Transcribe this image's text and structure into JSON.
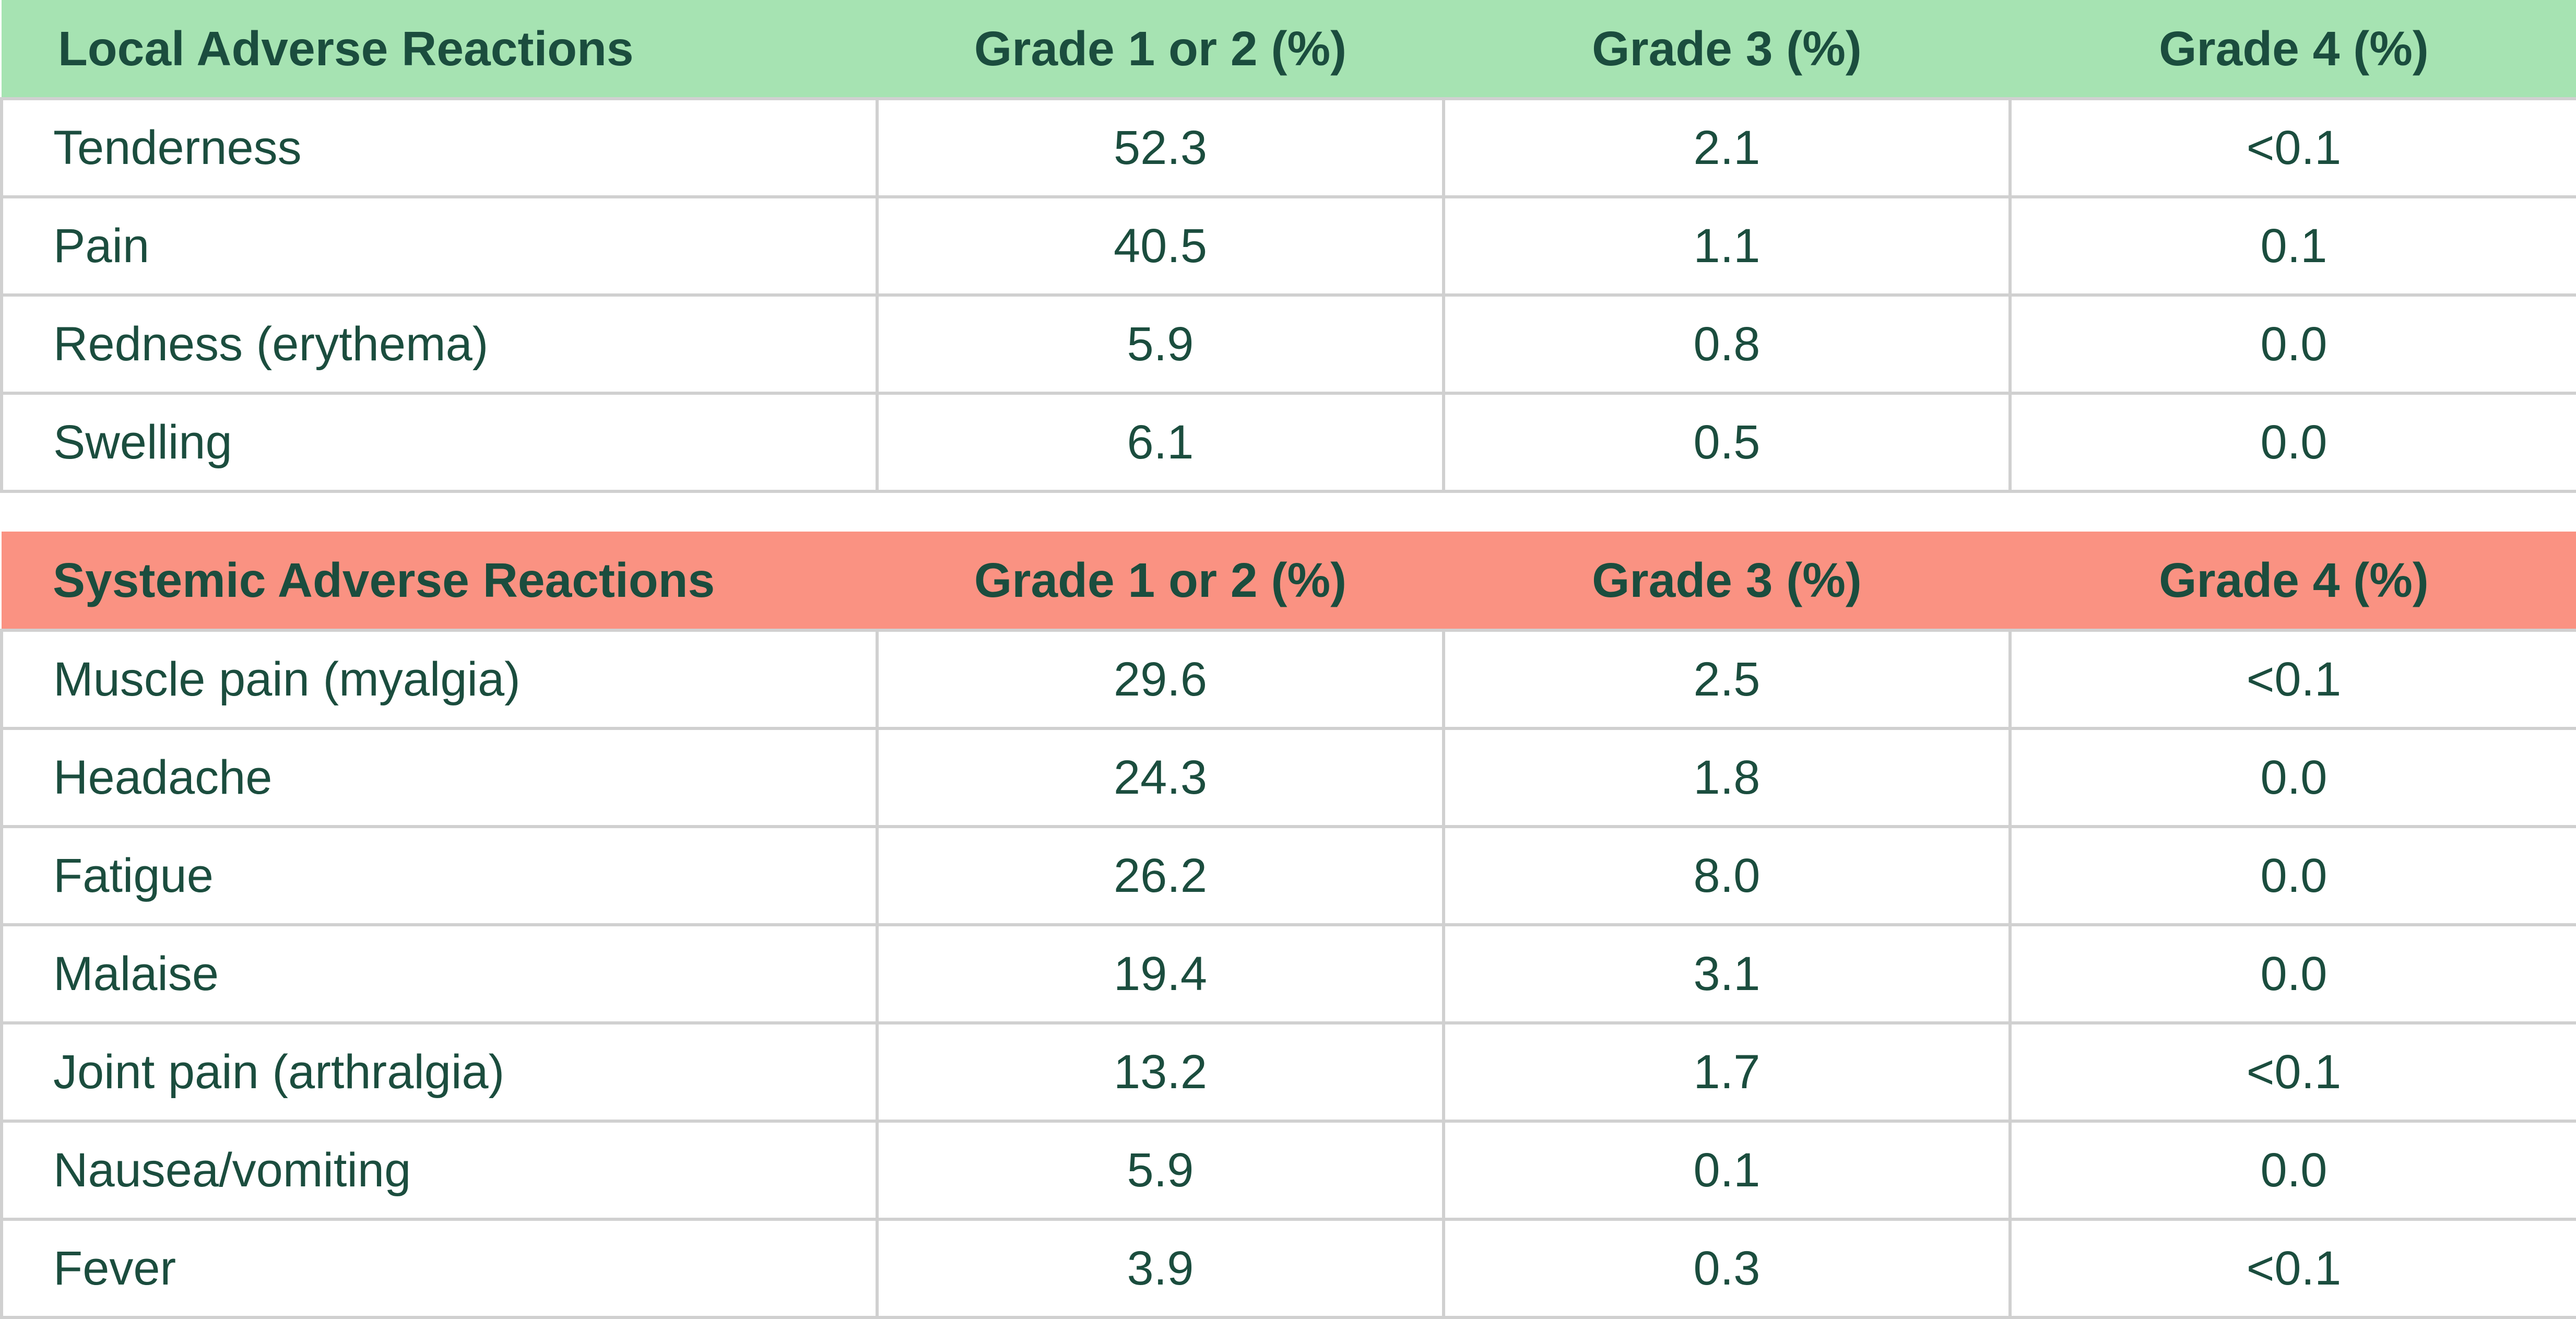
{
  "local_table": {
    "headers": [
      "Local Adverse Reactions",
      "Grade 1 or 2 (%)",
      "Grade 3 (%)",
      "Grade 4 (%)"
    ],
    "header_color": "#a6e3b2",
    "rows": [
      [
        "Tenderness",
        "52.3",
        "2.1",
        "<0.1"
      ],
      [
        "Pain",
        "40.5",
        "1.1",
        "0.1"
      ],
      [
        "Redness (erythema)",
        "5.9",
        "0.8",
        "0.0"
      ],
      [
        "Swelling",
        "6.1",
        "0.5",
        "0.0"
      ]
    ]
  },
  "systemic_table": {
    "headers": [
      "Systemic Adverse Reactions",
      "Grade 1 or 2 (%)",
      "Grade 3 (%)",
      "Grade 4 (%)"
    ],
    "header_color": "#fa9282",
    "rows": [
      [
        "Muscle pain (myalgia)",
        "29.6",
        "2.5",
        "<0.1"
      ],
      [
        "Headache",
        "24.3",
        "1.8",
        "0.0"
      ],
      [
        "Fatigue",
        "26.2",
        "8.0",
        "0.0"
      ],
      [
        "Malaise",
        "19.4",
        "3.1",
        "0.0"
      ],
      [
        "Joint pain (arthralgia)",
        "13.2",
        "1.7",
        "<0.1"
      ],
      [
        "Nausea/vomiting",
        "5.9",
        "0.1",
        "0.0"
      ],
      [
        "Fever",
        "3.9",
        "0.3",
        "<0.1"
      ]
    ]
  },
  "colors": {
    "text": "#1b4d3e",
    "grid": "#d0d0d0"
  }
}
